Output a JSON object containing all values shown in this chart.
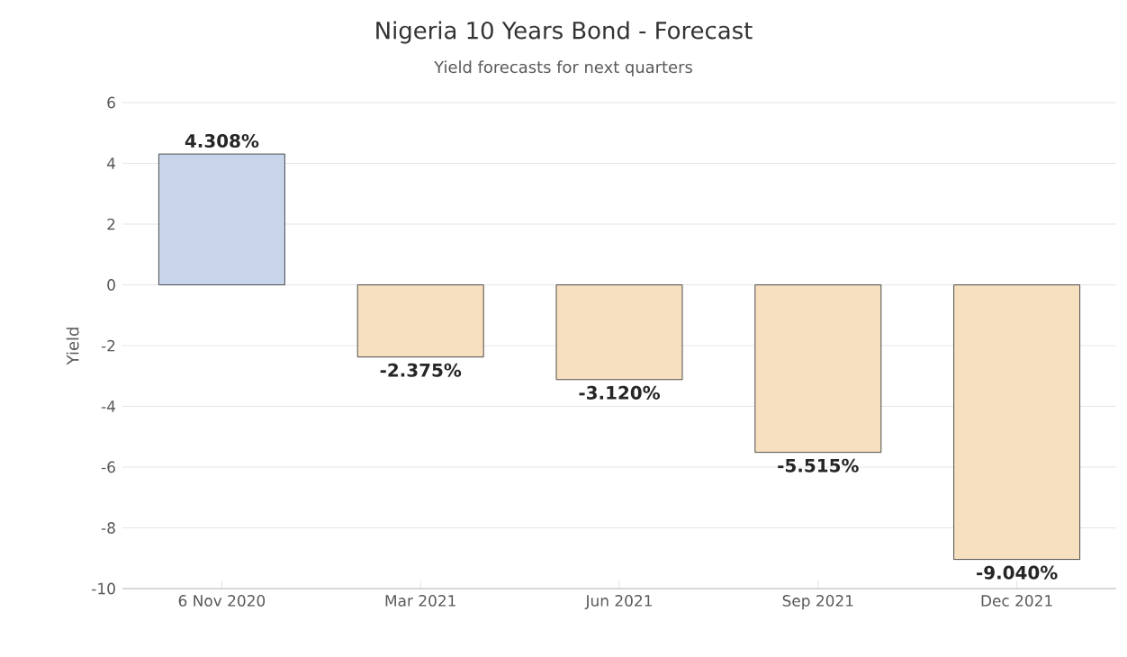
{
  "chart_data": {
    "type": "bar",
    "title": "Nigeria 10 Years Bond - Forecast",
    "subtitle": "Yield forecasts for next quarters",
    "ylabel": "Yield",
    "categories": [
      "6 Nov 2020",
      "Mar 2021",
      "Jun 2021",
      "Sep 2021",
      "Dec 2021"
    ],
    "values": [
      4.308,
      -2.375,
      -3.12,
      -5.515,
      -9.04
    ],
    "value_labels": [
      "4.308%",
      "-2.375%",
      "-3.120%",
      "-5.515%",
      "-9.040%"
    ],
    "colors": [
      "#c8d5ea",
      "#f6e0c0",
      "#f6e0c0",
      "#f6e0c0",
      "#f6e0c0"
    ],
    "ylim": [
      -10,
      6
    ],
    "yticks": [
      -10,
      -8,
      -6,
      -4,
      -2,
      0,
      2,
      4,
      6
    ],
    "grid": "y"
  }
}
